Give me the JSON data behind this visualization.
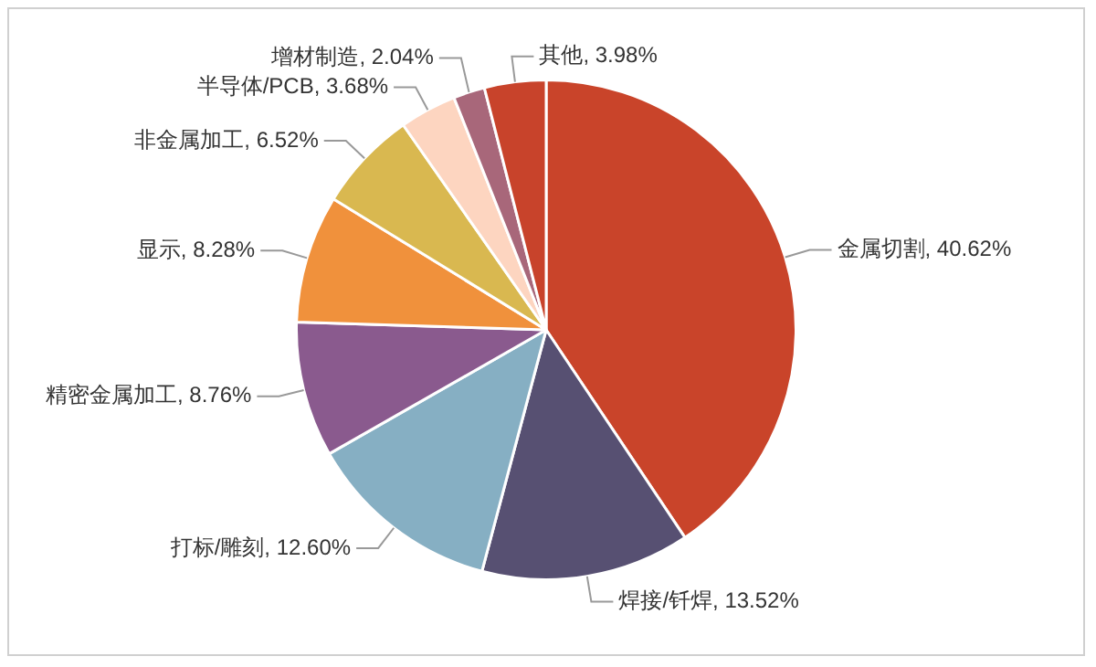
{
  "chart_data": {
    "type": "pie",
    "categories": [
      "金属切割",
      "焊接/钎焊",
      "打标/雕刻",
      "精密金属加工",
      "显示",
      "非金属加工",
      "半导体/PCB",
      "增材制造",
      "其他"
    ],
    "values": [
      40.62,
      13.52,
      12.6,
      8.76,
      8.28,
      6.52,
      3.68,
      2.04,
      3.98
    ],
    "value_labels": [
      "40.62%",
      "13.52%",
      "12.60%",
      "8.76%",
      "8.28%",
      "6.52%",
      "3.68%",
      "2.04%",
      "3.98%"
    ],
    "colors": [
      "#c9442a",
      "#575072",
      "#86afc3",
      "#8a5a8e",
      "#f0913c",
      "#d9b850",
      "#fdd5c0",
      "#a8677a",
      "#c8432b"
    ],
    "legend": false
  }
}
